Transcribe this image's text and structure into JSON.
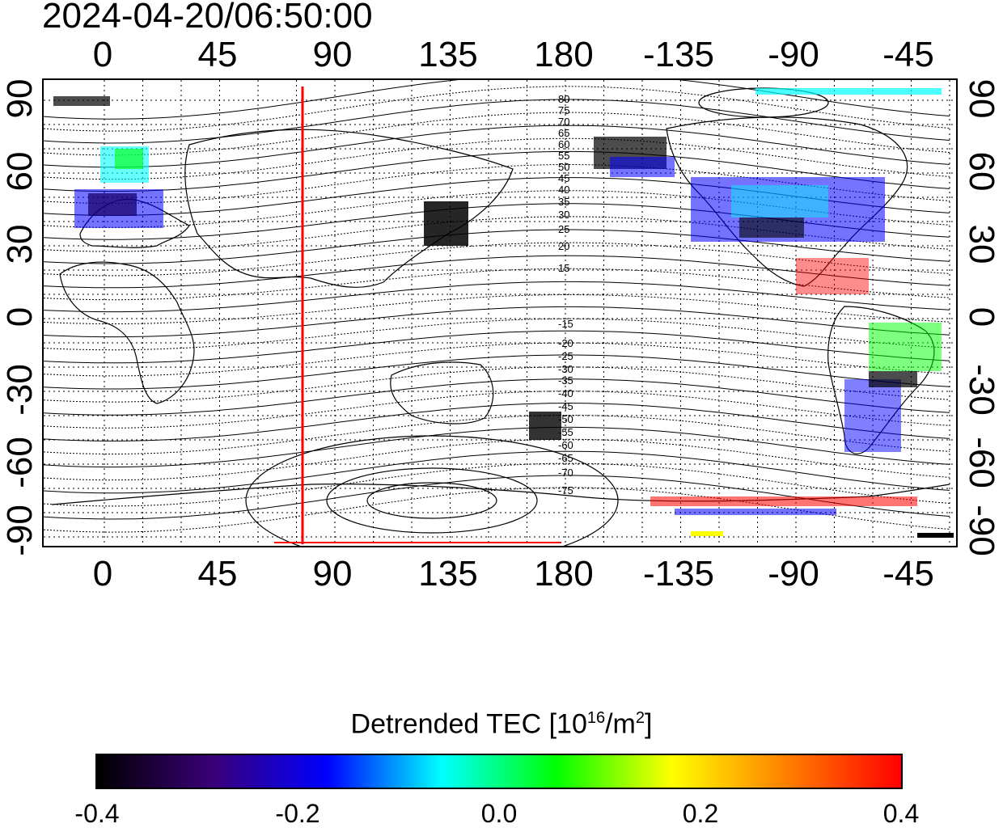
{
  "timestamp": "2024-04-20/06:50:00",
  "map": {
    "x_ticks": [
      "0",
      "45",
      "90",
      "135",
      "180",
      "-135",
      "-90",
      "-45"
    ],
    "y_ticks_left": [
      "90",
      "60",
      "30",
      "0",
      "-30",
      "-60",
      "-90"
    ],
    "y_ticks_right": [
      "90",
      "60",
      "30",
      "0",
      "-30",
      "-60",
      "-90"
    ],
    "contour_labels_north": [
      "80",
      "75",
      "70",
      "65",
      "60",
      "55",
      "50",
      "45",
      "40",
      "35",
      "30",
      "25",
      "20",
      "15"
    ],
    "contour_labels_south": [
      "-15",
      "-20",
      "-25",
      "-30",
      "-35",
      "-40",
      "-45",
      "-50",
      "-55",
      "-60",
      "-65",
      "-70",
      "-75"
    ],
    "marker_line_color": "#ff0000"
  },
  "colorbar": {
    "title_prefix": "Detrended TEC  [10",
    "title_exp": "16",
    "title_mid": "/m",
    "title_exp2": "2",
    "title_suffix": "]",
    "ticks": [
      "-0.4",
      "-0.2",
      "0.0",
      "0.2",
      "0.4"
    ],
    "colors": [
      "#000000",
      "#3a0078",
      "#0000ff",
      "#00ffff",
      "#00ff00",
      "#ffff00",
      "#ff8000",
      "#ff0000"
    ]
  }
}
